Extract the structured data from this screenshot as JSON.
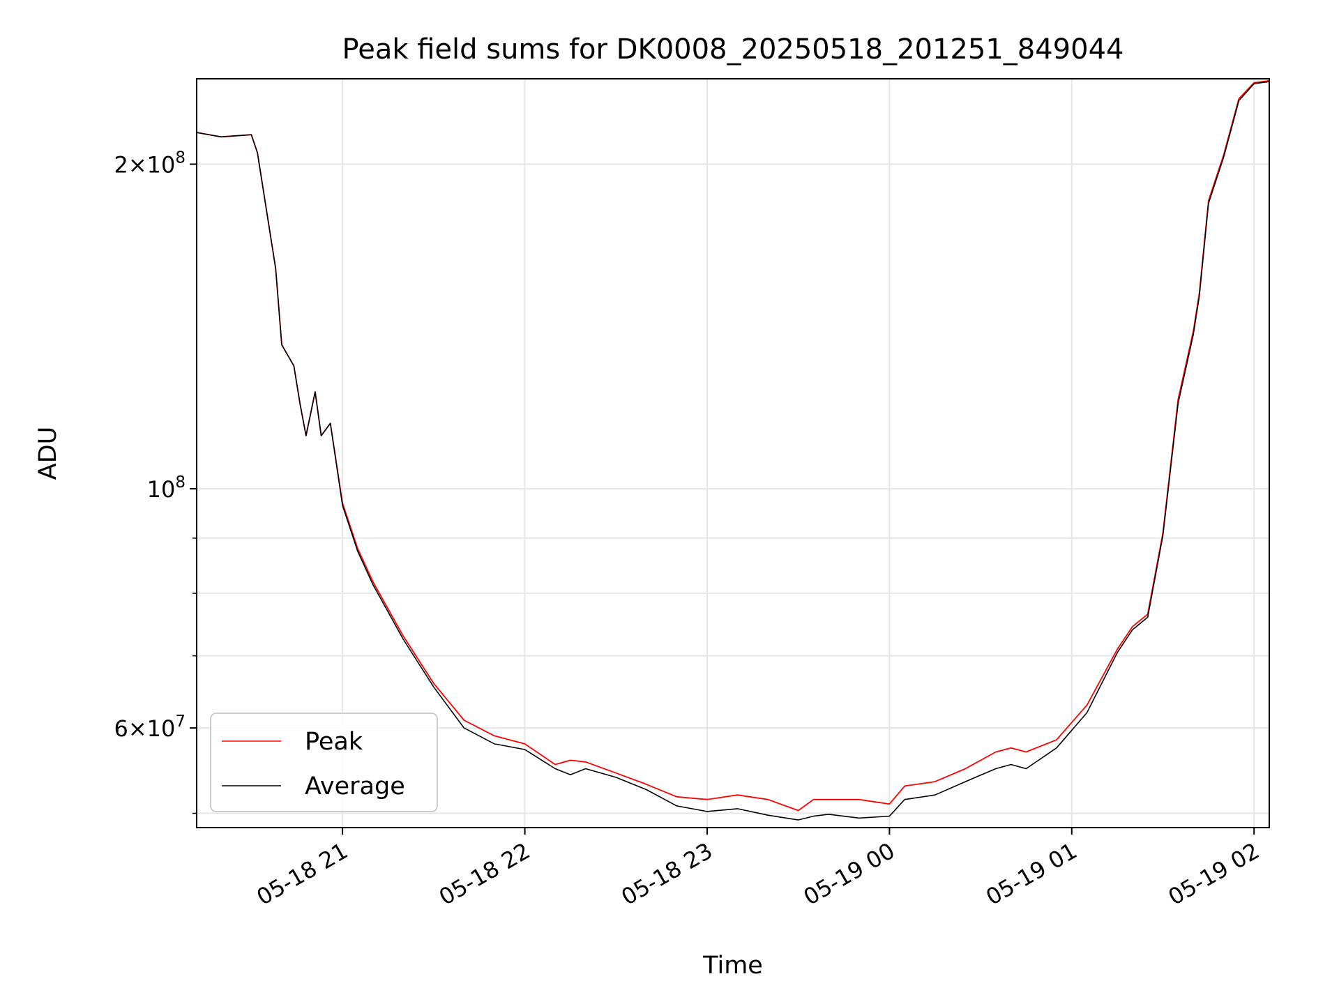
{
  "chart_data": {
    "type": "line",
    "title": "Peak field sums for DK0008_20250518_201251_849044",
    "xlabel": "Time",
    "ylabel": "ADU",
    "x_scale": "time",
    "y_scale": "log",
    "xlim": [
      "2025-05-18 20:12",
      "2025-05-19 02:05"
    ],
    "ylim": [
      48500000,
      240000000
    ],
    "grid": true,
    "legend_position": "lower-left",
    "x_ticks": [
      {
        "value": "2025-05-18 21:00",
        "label": "05-18 21"
      },
      {
        "value": "2025-05-18 22:00",
        "label": "05-18 22"
      },
      {
        "value": "2025-05-18 23:00",
        "label": "05-18 23"
      },
      {
        "value": "2025-05-19 00:00",
        "label": "05-19 00"
      },
      {
        "value": "2025-05-19 01:00",
        "label": "05-19 01"
      },
      {
        "value": "2025-05-19 02:00",
        "label": "05-19 02"
      }
    ],
    "y_ticks": [
      {
        "value": 200000000,
        "mantissa": "2",
        "exponent": "8"
      },
      {
        "value": 100000000,
        "mantissa": "",
        "exponent": "8"
      },
      {
        "value": 60000000,
        "mantissa": "6",
        "exponent": "7"
      }
    ],
    "y_minor_ticks": [
      50000000,
      70000000,
      80000000,
      90000000
    ],
    "series": [
      {
        "name": "Peak",
        "color": "#ff0000",
        "x": [
          "2025-05-18 20:12",
          "2025-05-18 20:20",
          "2025-05-18 20:30",
          "2025-05-18 20:32",
          "2025-05-18 20:38",
          "2025-05-18 20:40",
          "2025-05-18 20:44",
          "2025-05-18 20:46",
          "2025-05-18 20:48",
          "2025-05-18 20:51",
          "2025-05-18 20:53",
          "2025-05-18 20:56",
          "2025-05-18 21:00",
          "2025-05-18 21:05",
          "2025-05-18 21:10",
          "2025-05-18 21:20",
          "2025-05-18 21:30",
          "2025-05-18 21:40",
          "2025-05-18 21:50",
          "2025-05-18 22:00",
          "2025-05-18 22:10",
          "2025-05-18 22:15",
          "2025-05-18 22:20",
          "2025-05-18 22:30",
          "2025-05-18 22:40",
          "2025-05-18 22:50",
          "2025-05-18 23:00",
          "2025-05-18 23:10",
          "2025-05-18 23:20",
          "2025-05-18 23:30",
          "2025-05-18 23:35",
          "2025-05-18 23:40",
          "2025-05-18 23:50",
          "2025-05-19 00:00",
          "2025-05-19 00:05",
          "2025-05-19 00:15",
          "2025-05-19 00:25",
          "2025-05-19 00:35",
          "2025-05-19 00:40",
          "2025-05-19 00:45",
          "2025-05-19 00:55",
          "2025-05-19 01:05",
          "2025-05-19 01:15",
          "2025-05-19 01:20",
          "2025-05-19 01:25",
          "2025-05-19 01:30",
          "2025-05-19 01:35",
          "2025-05-19 01:40",
          "2025-05-19 01:42",
          "2025-05-19 01:45",
          "2025-05-19 01:50",
          "2025-05-19 01:55",
          "2025-05-19 02:00",
          "2025-05-19 02:05"
        ],
        "y": [
          214000000,
          212000000,
          213000000,
          205000000,
          160000000,
          136000000,
          130000000,
          120000000,
          112000000,
          123000000,
          112000000,
          115000000,
          97000000,
          88000000,
          82000000,
          73000000,
          66000000,
          61000000,
          59000000,
          58000000,
          55500000,
          56000000,
          55800000,
          54500000,
          53200000,
          51800000,
          51500000,
          52000000,
          51500000,
          50300000,
          51500000,
          51500000,
          51500000,
          51000000,
          53000000,
          53500000,
          55000000,
          57000000,
          57500000,
          57000000,
          58500000,
          63000000,
          71000000,
          74500000,
          76500000,
          91000000,
          121000000,
          140000000,
          152000000,
          185000000,
          204000000,
          230000000,
          238000000,
          239000000
        ]
      },
      {
        "name": "Average",
        "color": "#000000",
        "x": [
          "2025-05-18 20:12",
          "2025-05-18 20:20",
          "2025-05-18 20:30",
          "2025-05-18 20:32",
          "2025-05-18 20:38",
          "2025-05-18 20:40",
          "2025-05-18 20:44",
          "2025-05-18 20:46",
          "2025-05-18 20:48",
          "2025-05-18 20:51",
          "2025-05-18 20:53",
          "2025-05-18 20:56",
          "2025-05-18 21:00",
          "2025-05-18 21:05",
          "2025-05-18 21:10",
          "2025-05-18 21:20",
          "2025-05-18 21:30",
          "2025-05-18 21:40",
          "2025-05-18 21:50",
          "2025-05-18 22:00",
          "2025-05-18 22:10",
          "2025-05-18 22:15",
          "2025-05-18 22:20",
          "2025-05-18 22:30",
          "2025-05-18 22:40",
          "2025-05-18 22:50",
          "2025-05-18 23:00",
          "2025-05-18 23:10",
          "2025-05-18 23:20",
          "2025-05-18 23:30",
          "2025-05-18 23:35",
          "2025-05-18 23:40",
          "2025-05-18 23:50",
          "2025-05-19 00:00",
          "2025-05-19 00:05",
          "2025-05-19 00:15",
          "2025-05-19 00:25",
          "2025-05-19 00:35",
          "2025-05-19 00:40",
          "2025-05-19 00:45",
          "2025-05-19 00:55",
          "2025-05-19 01:05",
          "2025-05-19 01:15",
          "2025-05-19 01:20",
          "2025-05-19 01:25",
          "2025-05-19 01:30",
          "2025-05-19 01:35",
          "2025-05-19 01:40",
          "2025-05-19 01:42",
          "2025-05-19 01:45",
          "2025-05-19 01:50",
          "2025-05-19 01:55",
          "2025-05-19 02:00",
          "2025-05-19 02:05"
        ],
        "y": [
          214000000,
          212000000,
          213000000,
          205000000,
          160000000,
          136000000,
          130000000,
          120000000,
          112000000,
          123000000,
          112000000,
          115000000,
          96500000,
          87500000,
          81500000,
          72500000,
          65500000,
          60000000,
          58000000,
          57300000,
          55000000,
          54300000,
          55000000,
          54000000,
          52600000,
          50800000,
          50200000,
          50500000,
          49800000,
          49300000,
          49700000,
          49900000,
          49500000,
          49700000,
          51500000,
          52000000,
          53500000,
          55000000,
          55500000,
          55000000,
          57500000,
          62000000,
          70500000,
          74000000,
          76000000,
          90500000,
          120000000,
          139000000,
          151000000,
          184000000,
          203000000,
          229000000,
          237500000,
          238500000
        ]
      }
    ]
  }
}
